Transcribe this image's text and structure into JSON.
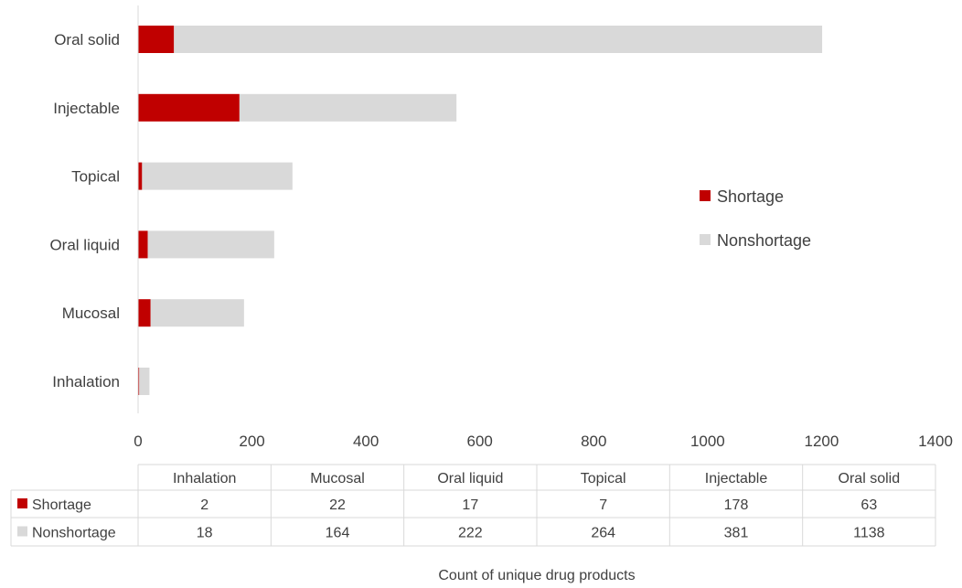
{
  "chart_data": {
    "type": "bar",
    "orientation": "horizontal",
    "stacked": true,
    "categories": [
      "Inhalation",
      "Mucosal",
      "Oral liquid",
      "Topical",
      "Injectable",
      "Oral solid"
    ],
    "series": [
      {
        "name": "Shortage",
        "values": [
          2,
          22,
          17,
          7,
          178,
          63
        ],
        "color": "#c00000"
      },
      {
        "name": "Nonshortage",
        "values": [
          18,
          164,
          222,
          264,
          381,
          1138
        ],
        "color": "#d9d9d9"
      }
    ],
    "xlim": [
      0,
      1400
    ],
    "xticks": [
      0,
      200,
      400,
      600,
      800,
      1000,
      1200,
      1400
    ],
    "xlabel": "Count of unique drug products",
    "ylabel": "",
    "title": "",
    "grid": false,
    "legend_position": "right",
    "data_table": true
  }
}
